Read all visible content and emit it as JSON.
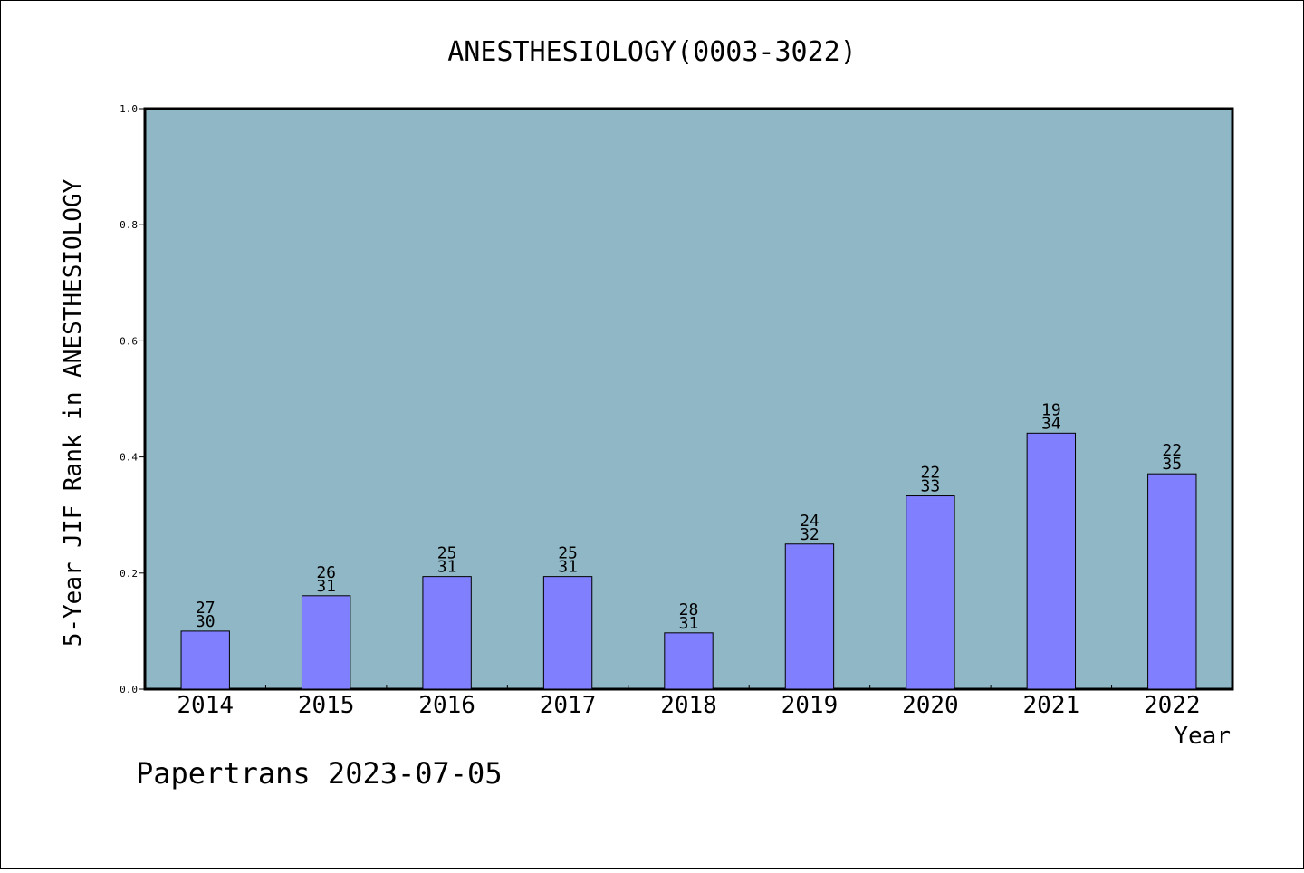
{
  "chart_data": {
    "type": "bar",
    "title": "ANESTHESIOLOGY(0003-3022)",
    "xlabel": "Year",
    "ylabel": "5-Year JIF Rank in ANESTHESIOLOGY",
    "ylim": [
      0,
      1.0
    ],
    "yticks": [
      "0.0",
      "0.2",
      "0.4",
      "0.6",
      "0.8",
      "1.0"
    ],
    "categories": [
      "2014",
      "2015",
      "2016",
      "2017",
      "2018",
      "2019",
      "2020",
      "2021",
      "2022"
    ],
    "values": [
      0.1,
      0.161,
      0.194,
      0.194,
      0.097,
      0.25,
      0.333,
      0.441,
      0.371
    ],
    "bar_labels": [
      {
        "rank": "27",
        "total": "30"
      },
      {
        "rank": "26",
        "total": "31"
      },
      {
        "rank": "25",
        "total": "31"
      },
      {
        "rank": "25",
        "total": "31"
      },
      {
        "rank": "28",
        "total": "31"
      },
      {
        "rank": "24",
        "total": "32"
      },
      {
        "rank": "22",
        "total": "33"
      },
      {
        "rank": "19",
        "total": "34"
      },
      {
        "rank": "22",
        "total": "35"
      }
    ],
    "grid": false,
    "colors": {
      "plot_background": "#8fb7c6",
      "bar_fill": "#8080ff",
      "bar_stroke": "#000000"
    }
  },
  "footer": {
    "text": "Papertrans 2023-07-05"
  }
}
